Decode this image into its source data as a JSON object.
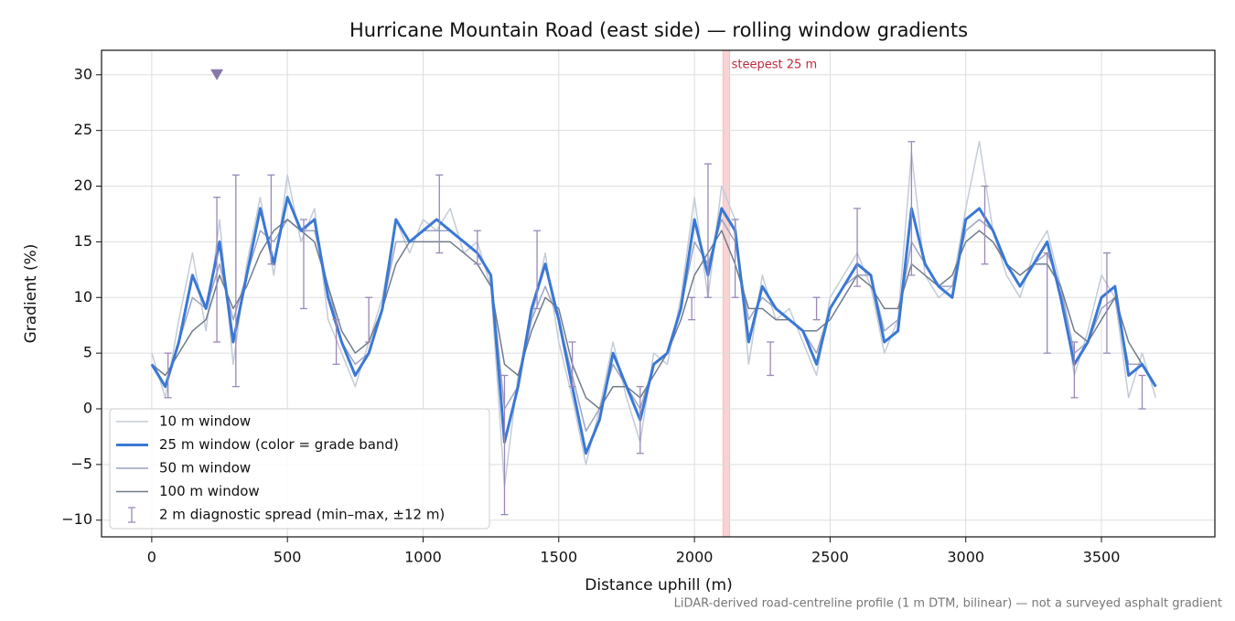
{
  "chart_data": {
    "type": "line",
    "title": "Hurricane Mountain Road (east side) — rolling window gradients",
    "xlabel": "Distance uphill (m)",
    "ylabel": "Gradient (%)",
    "footnote": "LiDAR-derived road-centreline profile (1 m DTM, bilinear) — not a surveyed asphalt gradient",
    "x": [
      0,
      50,
      100,
      150,
      200,
      250,
      300,
      350,
      400,
      450,
      500,
      550,
      600,
      650,
      700,
      750,
      800,
      850,
      900,
      950,
      1000,
      1050,
      1100,
      1150,
      1200,
      1250,
      1300,
      1350,
      1400,
      1450,
      1500,
      1550,
      1600,
      1650,
      1700,
      1750,
      1800,
      1850,
      1900,
      1950,
      2000,
      2050,
      2100,
      2150,
      2200,
      2250,
      2300,
      2350,
      2400,
      2450,
      2500,
      2550,
      2600,
      2650,
      2700,
      2750,
      2800,
      2850,
      2900,
      2950,
      3000,
      3050,
      3100,
      3150,
      3200,
      3250,
      3300,
      3350,
      3400,
      3450,
      3500,
      3550,
      3600,
      3650,
      3700
    ],
    "series": [
      {
        "name": "10 m window",
        "color": "#c3ccd8",
        "width": 1.5,
        "values": [
          5,
          1,
          8,
          14,
          7,
          17,
          4,
          13,
          19,
          12,
          21,
          15,
          18,
          8,
          5,
          2,
          6,
          10,
          17,
          14,
          17,
          16,
          18,
          14,
          15,
          11,
          -7,
          3,
          8,
          14,
          6,
          1,
          -5,
          0,
          6,
          1,
          -3,
          5,
          4,
          10,
          19,
          10,
          20,
          17,
          4,
          12,
          8,
          9,
          6,
          3,
          10,
          12,
          14,
          11,
          5,
          8,
          23,
          12,
          10,
          11,
          18,
          24,
          16,
          12,
          10,
          14,
          16,
          11,
          3,
          7,
          12,
          10,
          1,
          5,
          1
        ]
      },
      {
        "name": "25 m window (color = grade band)",
        "color": "#3a78d4",
        "width": 3,
        "values": [
          4,
          2,
          6,
          12,
          9,
          15,
          6,
          12,
          18,
          13,
          19,
          16,
          17,
          10,
          6,
          3,
          5,
          9,
          17,
          15,
          16,
          17,
          16,
          15,
          14,
          12,
          -3,
          2,
          9,
          13,
          8,
          2,
          -4,
          -1,
          5,
          2,
          -1,
          4,
          5,
          9,
          17,
          12,
          18,
          16,
          6,
          11,
          9,
          8,
          7,
          4,
          9,
          11,
          13,
          12,
          6,
          7,
          18,
          13,
          11,
          10,
          17,
          18,
          16,
          13,
          11,
          13,
          15,
          10,
          4,
          6,
          10,
          11,
          3,
          4,
          2
        ]
      },
      {
        "name": "50 m window",
        "color": "#9ea4c2",
        "width": 1.5,
        "values": [
          4,
          2,
          6,
          10,
          9,
          13,
          8,
          12,
          16,
          15,
          17,
          16,
          16,
          11,
          6,
          4,
          5,
          9,
          15,
          15,
          16,
          16,
          16,
          15,
          14,
          12,
          0,
          2,
          8,
          11,
          8,
          3,
          -2,
          0,
          4,
          2,
          0,
          4,
          5,
          9,
          15,
          13,
          17,
          15,
          8,
          10,
          9,
          8,
          7,
          5,
          9,
          11,
          12,
          12,
          7,
          8,
          15,
          13,
          11,
          11,
          16,
          17,
          16,
          13,
          12,
          13,
          14,
          11,
          5,
          6,
          9,
          10,
          4,
          4,
          2
        ]
      },
      {
        "name": "100 m window",
        "color": "#717c8c",
        "width": 1.5,
        "values": [
          4,
          3,
          5,
          7,
          8,
          12,
          9,
          11,
          14,
          16,
          17,
          16,
          15,
          11,
          7,
          5,
          6,
          9,
          13,
          15,
          15,
          15,
          15,
          14,
          13,
          11,
          4,
          3,
          7,
          10,
          9,
          4,
          1,
          0,
          2,
          2,
          1,
          3,
          5,
          8,
          12,
          14,
          16,
          13,
          9,
          9,
          8,
          8,
          7,
          7,
          8,
          10,
          12,
          11,
          9,
          9,
          13,
          12,
          11,
          12,
          15,
          16,
          15,
          13,
          12,
          13,
          13,
          11,
          7,
          6,
          8,
          10,
          6,
          4,
          2
        ]
      }
    ],
    "errorbars": {
      "name": "2 m diagnostic spread (min–max, ±12 m)",
      "color": "#9a88b8",
      "x": [
        60,
        240,
        310,
        440,
        560,
        680,
        800,
        1060,
        1200,
        1300,
        1420,
        1550,
        1800,
        1990,
        2050,
        2150,
        2280,
        2450,
        2600,
        2800,
        3070,
        3300,
        3400,
        3520,
        3650
      ],
      "low": [
        1,
        6,
        2,
        13,
        9,
        4,
        6,
        14,
        13,
        -9.5,
        9,
        2,
        -4,
        8,
        10,
        10,
        3,
        8,
        11,
        12,
        13,
        5,
        1,
        5,
        0
      ],
      "high": [
        5,
        19,
        21,
        21,
        17,
        8,
        10,
        21,
        16,
        3,
        16,
        6,
        2,
        10,
        22,
        17,
        6,
        10,
        18,
        24,
        20,
        14,
        6,
        14,
        3
      ]
    },
    "marker": {
      "x": 240,
      "y": 30,
      "color": "#8878a8"
    },
    "span": {
      "x": [
        2105,
        2130
      ],
      "label": "steepest 25 m",
      "color": "#f4b6b6"
    },
    "xlim": [
      -185,
      3918
    ],
    "ylim": [
      -11.5,
      32.2
    ],
    "xticks": [
      0,
      500,
      1000,
      1500,
      2000,
      2500,
      3000,
      3500
    ],
    "yticks": [
      {
        "value": -10,
        "label": "−10"
      },
      {
        "value": -5,
        "label": "−5"
      },
      0,
      5,
      10,
      15,
      20,
      25,
      30
    ],
    "grid": true,
    "legend": "lower left"
  }
}
